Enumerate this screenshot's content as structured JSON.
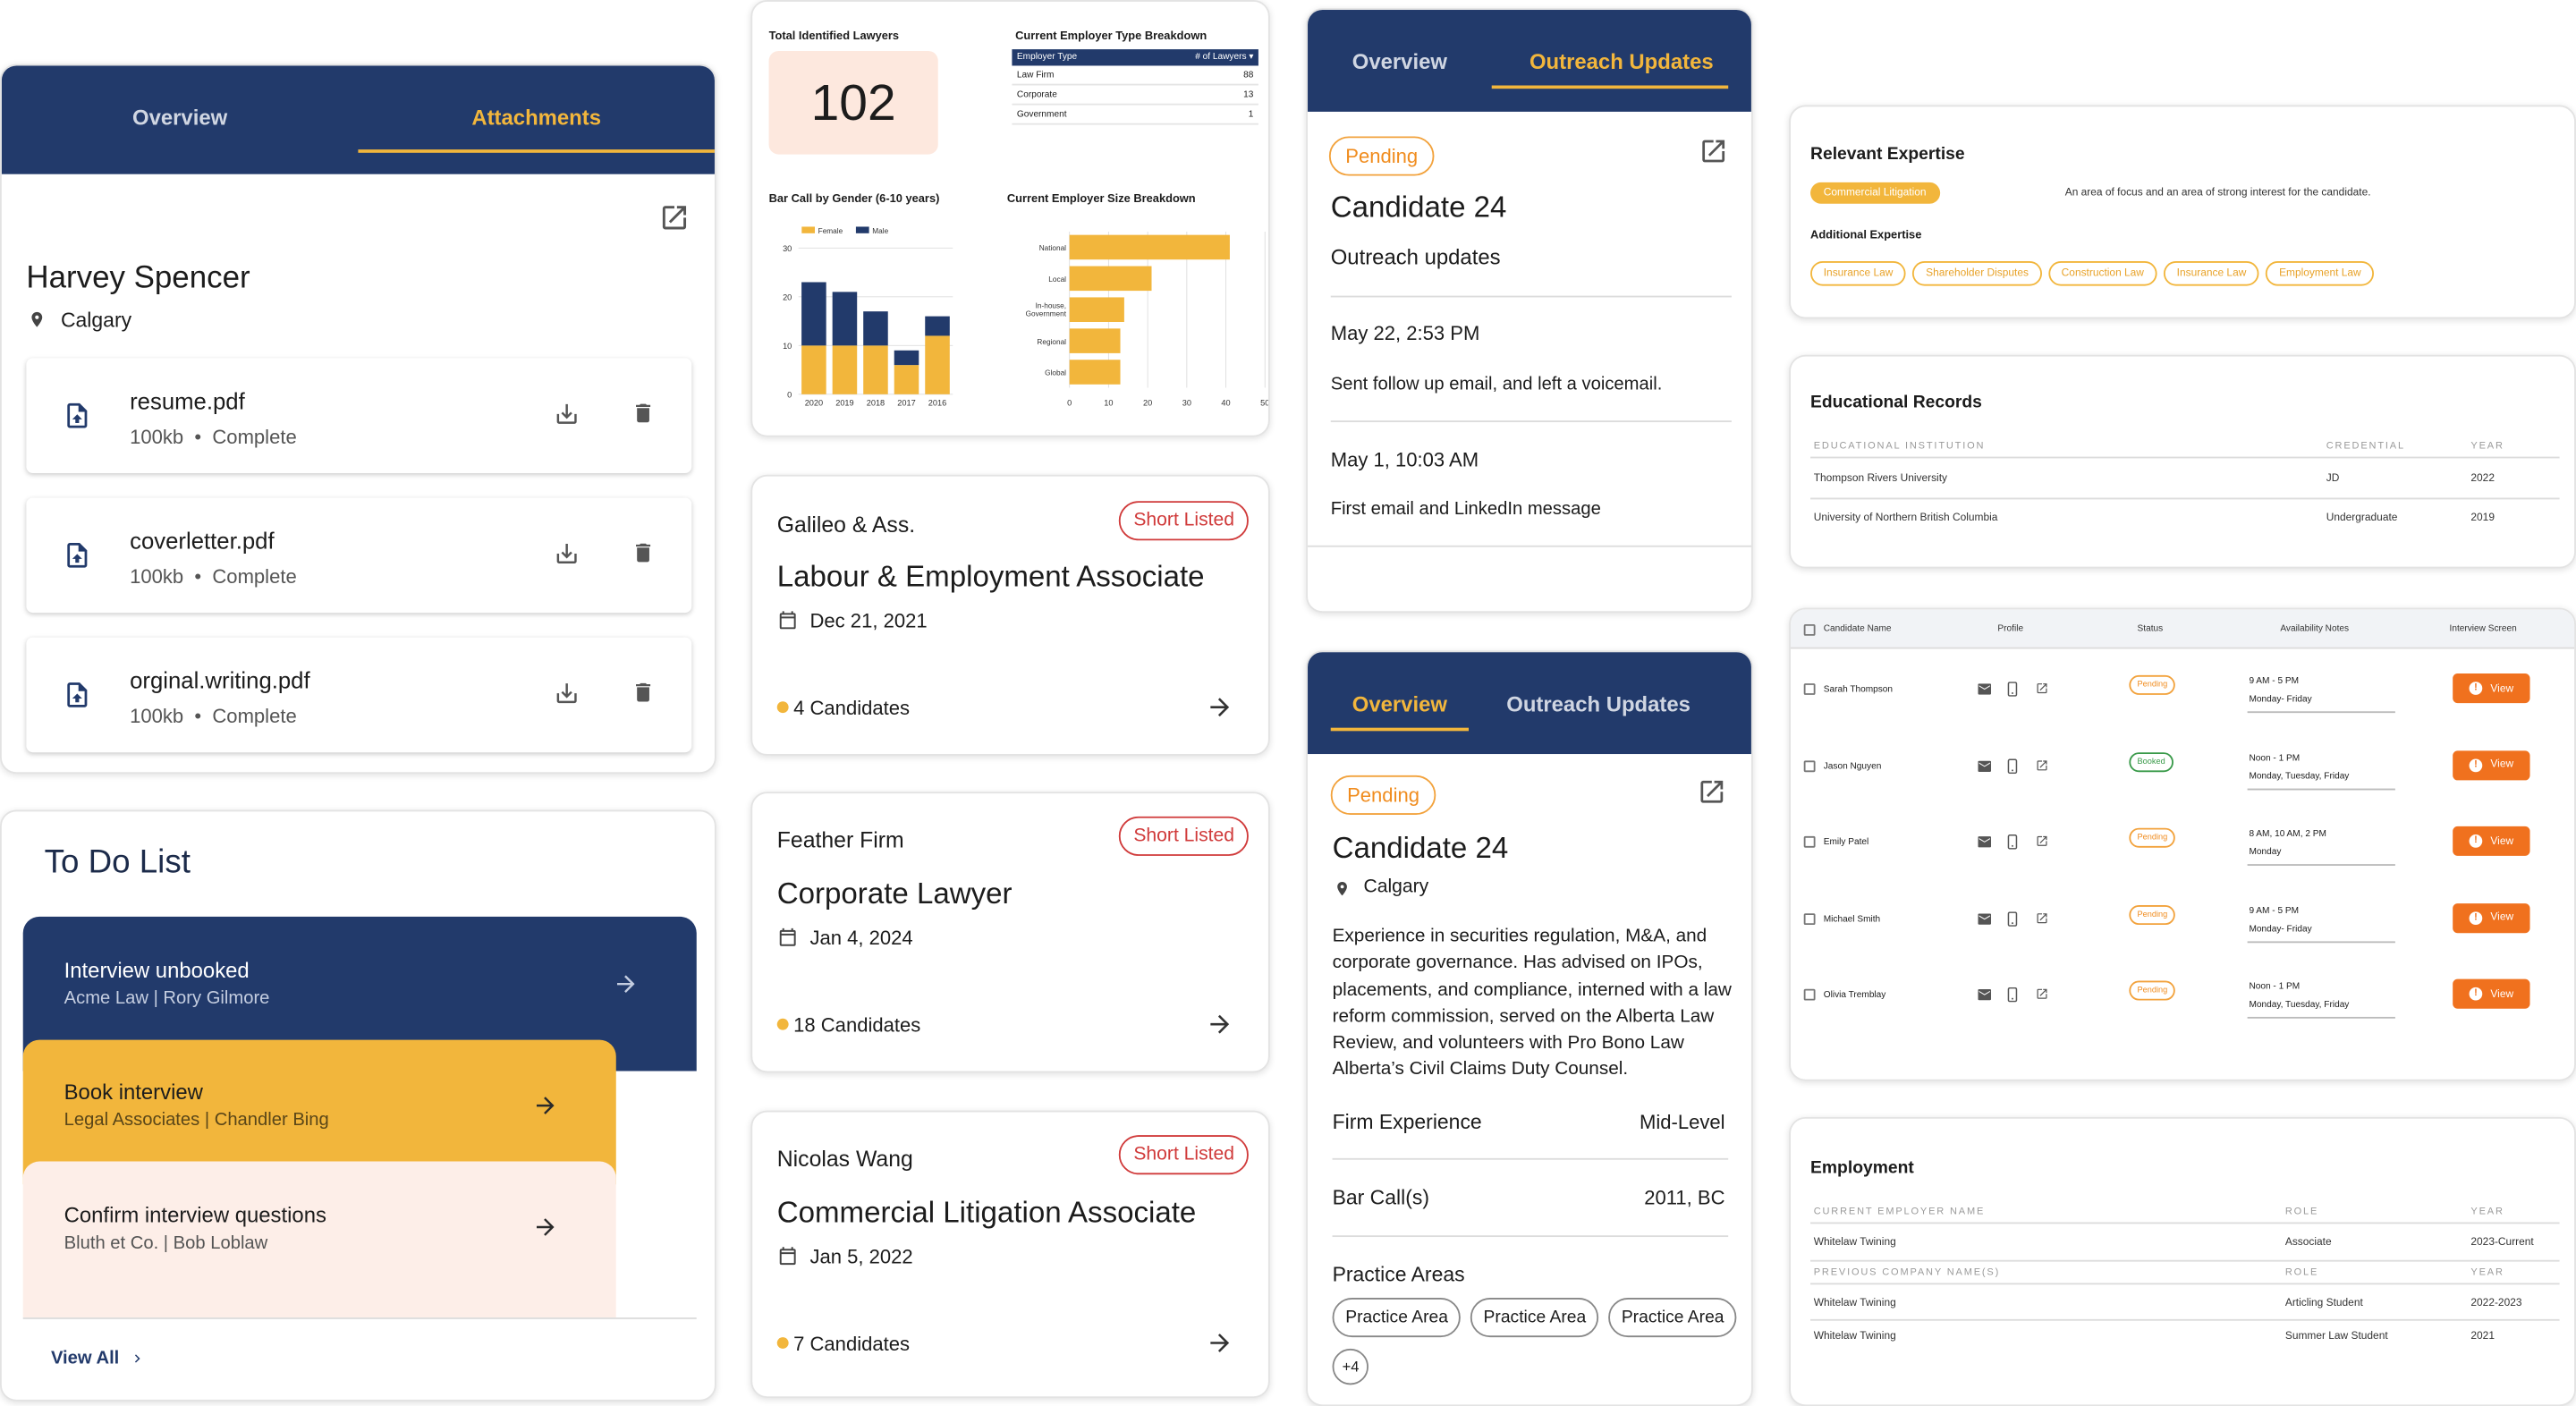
{
  "colors": {
    "navy": "#223a6b",
    "gold": "#f2b63c",
    "orange": "#f0711e",
    "peach": "#fdeae1",
    "badge_bg": "#fde8de"
  },
  "attachments_card": {
    "tabs": [
      "Overview",
      "Attachments"
    ],
    "name": "Harvey Spencer",
    "location": "Calgary",
    "files": [
      {
        "name": "resume.pdf",
        "size": "100kb",
        "status": "Complete"
      },
      {
        "name": "coverletter.pdf",
        "size": "100kb",
        "status": "Complete"
      },
      {
        "name": "orginal.writing.pdf",
        "size": "100kb",
        "status": "Complete"
      }
    ],
    "bullet": "•"
  },
  "todo": {
    "title": "To Do List",
    "items": [
      {
        "title": "Interview unbooked",
        "sub": "Acme Law | Rory Gilmore"
      },
      {
        "title": "Book interview",
        "sub": "Legal Associates | Chandler Bing"
      },
      {
        "title": "Confirm interview questions",
        "sub": "Bluth et Co. | Bob Loblaw"
      }
    ],
    "view_all": "View All"
  },
  "dashboard": {
    "total_title": "Total Identified Lawyers",
    "total_value": "102",
    "employer_type": {
      "title": "Current Employer Type Breakdown",
      "headers": [
        "Employer Type",
        "# of Lawyers"
      ],
      "rows": [
        [
          "Law Firm",
          "88"
        ],
        [
          "Corporate",
          "13"
        ],
        [
          "Government",
          "1"
        ]
      ]
    }
  },
  "chart_data": [
    {
      "type": "bar",
      "title": "Bar Call by Gender (6-10 years)",
      "stacked": true,
      "categories": [
        "2020",
        "2019",
        "2018",
        "2017",
        "2016"
      ],
      "series": [
        {
          "name": "Female",
          "values": [
            10,
            10,
            10,
            6,
            12
          ]
        },
        {
          "name": "Male",
          "values": [
            13,
            11,
            7,
            3,
            4
          ]
        }
      ],
      "ylim": [
        0,
        30
      ],
      "yticks": [
        "0",
        "10",
        "20",
        "30"
      ],
      "legend": "top-left",
      "grid": true
    },
    {
      "type": "bar",
      "orientation": "horizontal",
      "title": "Current Employer Size Breakdown",
      "categories": [
        "National",
        "Local",
        "In-house, Government",
        "Regional",
        "Global"
      ],
      "values": [
        41,
        21,
        14,
        13,
        13
      ],
      "xlim": [
        0,
        50
      ],
      "xticks": [
        "0",
        "10",
        "20",
        "30",
        "40",
        "50"
      ],
      "grid": true
    }
  ],
  "jobs": [
    {
      "firm": "Galileo & Ass.",
      "badge": "Short Listed",
      "title": "Labour & Employment Associate",
      "date": "Dec 21, 2021",
      "candidates": "4 Candidates"
    },
    {
      "firm": "Feather Firm",
      "badge": "Short Listed",
      "title": "Corporate Lawyer",
      "date": "Jan 4, 2024",
      "candidates": "18 Candidates"
    },
    {
      "firm": "Nicolas Wang",
      "badge": "Short Listed",
      "title": "Commercial Litigation Associate",
      "date": "Jan 5, 2022",
      "candidates": "7 Candidates"
    }
  ],
  "outreach": {
    "tabs": [
      "Overview",
      "Outreach Updates"
    ],
    "status": "Pending",
    "candidate": "Candidate 24",
    "subtitle": "Outreach updates",
    "updates": [
      {
        "date": "May 22, 2:53 PM",
        "text": "Sent  follow up email, and left a voicemail."
      },
      {
        "date": "May 1, 10:03 AM",
        "text": "First email and LinkedIn message"
      }
    ]
  },
  "overview": {
    "tabs": [
      "Overview",
      "Outreach Updates"
    ],
    "status": "Pending",
    "candidate": "Candidate 24",
    "location": "Calgary",
    "bio": "Experience in securities regulation, M&A, and corporate governance. Has advised on IPOs, placements, and compliance, interned with a law reform commission, served on the Alberta Law Review, and volunteers with Pro Bono Law Alberta’s Civil Claims Duty Counsel.",
    "firm_experience_label": "Firm Experience",
    "firm_experience": "Mid-Level",
    "bar_calls_label": "Bar Call(s)",
    "bar_calls": "2011, BC",
    "practice_label": "Practice Areas",
    "practice_areas": [
      "Practice Area",
      "Practice Area",
      "Practice Area"
    ],
    "more": "+4"
  },
  "expertise": {
    "title": "Relevant Expertise",
    "primary": "Commercial Litigation",
    "primary_note": "An area of focus and an area of strong interest for the candidate.",
    "additional_label": "Additional Expertise",
    "additional": [
      "Insurance Law",
      "Shareholder Disputes",
      "Construction Law",
      "Insurance Law",
      "Employment Law"
    ]
  },
  "education": {
    "title": "Educational Records",
    "headers": [
      "Educational Institution",
      "Credential",
      "Year"
    ],
    "rows": [
      [
        "Thompson Rivers University",
        "JD",
        "2022"
      ],
      [
        "University of Northern British Columbia",
        "Undergraduate",
        "2019"
      ]
    ]
  },
  "candidates_table": {
    "headers": [
      "Candidate Name",
      "Profile",
      "Status",
      "Availability Notes",
      "Interview Screen"
    ],
    "rows": [
      {
        "name": "Sarah Thompson",
        "status": "Pending",
        "time": "9 AM - 5 PM",
        "days": "Monday- Friday",
        "action": "View"
      },
      {
        "name": "Jason Nguyen",
        "status": "Booked",
        "time": "Noon - 1 PM",
        "days": "Monday, Tuesday, Friday",
        "action": "View"
      },
      {
        "name": "Emily Patel",
        "status": "Pending",
        "time": "8 AM, 10 AM, 2 PM",
        "days": "Monday",
        "action": "View"
      },
      {
        "name": "Michael Smith",
        "status": "Pending",
        "time": "9 AM - 5 PM",
        "days": "Monday- Friday",
        "action": "View"
      },
      {
        "name": "Olivia Tremblay",
        "status": "Pending",
        "time": "Noon - 1 PM",
        "days": "Monday, Tuesday, Friday",
        "action": "View"
      }
    ]
  },
  "employment": {
    "title": "Employment",
    "current_headers": [
      "Current Employer Name",
      "Role",
      "Year"
    ],
    "current": [
      [
        "Whitelaw Twining",
        "Associate",
        "2023-Current"
      ]
    ],
    "previous_headers": [
      "Previous Company Name(s)",
      "Role",
      "Year"
    ],
    "previous": [
      [
        "Whitelaw Twining",
        "Articling Student",
        "2022-2023"
      ],
      [
        "Whitelaw Twining",
        "Summer Law Student",
        "2021"
      ]
    ]
  }
}
